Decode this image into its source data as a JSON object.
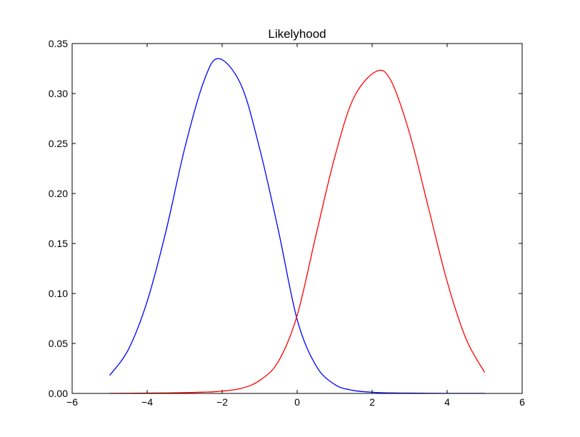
{
  "chart_data": {
    "type": "line",
    "title": "Likelyhood",
    "xlabel": "",
    "ylabel": "",
    "xlim": [
      -6,
      6
    ],
    "ylim": [
      0,
      0.35
    ],
    "x_ticks": [
      "−6",
      "−4",
      "−2",
      "0",
      "2",
      "4",
      "6"
    ],
    "y_ticks": [
      "0.00",
      "0.05",
      "0.10",
      "0.15",
      "0.20",
      "0.25",
      "0.30",
      "0.35"
    ],
    "grid": false,
    "legend": "none",
    "x": [
      -5.0,
      -4.5,
      -4.0,
      -3.5,
      -3.0,
      -2.5,
      -2.1,
      -1.5,
      -1.0,
      -0.5,
      0.0,
      0.5,
      1.0,
      1.5,
      2.1,
      2.5,
      3.0,
      3.5,
      4.0,
      4.5,
      5.0
    ],
    "series": [
      {
        "color": "#0000ff",
        "values": [
          0.018,
          0.044,
          0.092,
          0.162,
          0.245,
          0.311,
          0.335,
          0.309,
          0.245,
          0.163,
          0.074,
          0.028,
          0.009,
          0.003,
          0.001,
          0.0005,
          0.0003,
          0.0002,
          0.0001,
          0.0001,
          0.0001
        ]
      },
      {
        "color": "#ff0000",
        "values": [
          0.0001,
          0.0002,
          0.0003,
          0.0005,
          0.0008,
          0.0013,
          0.002,
          0.005,
          0.013,
          0.032,
          0.078,
          0.158,
          0.236,
          0.295,
          0.322,
          0.313,
          0.26,
          0.186,
          0.112,
          0.055,
          0.021
        ]
      }
    ]
  }
}
